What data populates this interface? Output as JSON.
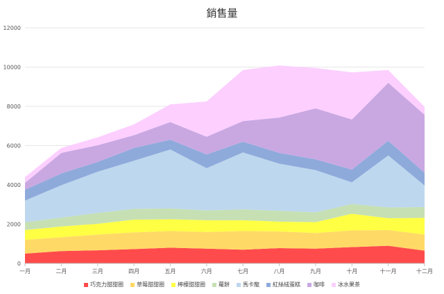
{
  "chart_data": {
    "type": "area",
    "stacked": true,
    "title": "銷售量",
    "categories": [
      "一月",
      "二月",
      "三月",
      "四月",
      "五月",
      "六月",
      "七月",
      "八月",
      "九月",
      "十月",
      "十一月",
      "十二月"
    ],
    "ylim": [
      0,
      12000
    ],
    "yticks": [
      0,
      2000,
      4000,
      6000,
      8000,
      10000,
      12000
    ],
    "grid": true,
    "legend_position": "bottom",
    "series": [
      {
        "name": "巧克力甜甜圈",
        "color": "#ff4b4b",
        "values": [
          500,
          630,
          670,
          730,
          800,
          750,
          700,
          780,
          750,
          830,
          900,
          650
        ]
      },
      {
        "name": "草莓甜甜圈",
        "color": "#ffd966",
        "values": [
          700,
          700,
          800,
          850,
          850,
          850,
          950,
          850,
          800,
          850,
          800,
          820
        ]
      },
      {
        "name": "檸檬甜甜圈",
        "color": "#ffff44",
        "values": [
          500,
          550,
          550,
          650,
          600,
          600,
          550,
          500,
          550,
          850,
          600,
          850
        ]
      },
      {
        "name": "蘿餅",
        "color": "#c6e0b4",
        "values": [
          400,
          450,
          550,
          550,
          550,
          500,
          550,
          550,
          500,
          500,
          550,
          550
        ]
      },
      {
        "name": "馬卡龍",
        "color": "#bdd7ee",
        "values": [
          1100,
          1650,
          2100,
          2450,
          3000,
          2150,
          2900,
          2400,
          2150,
          1100,
          2650,
          1100
        ]
      },
      {
        "name": "紅絲絨蛋糕",
        "color": "#8eaadb",
        "values": [
          550,
          600,
          500,
          650,
          500,
          700,
          550,
          550,
          550,
          650,
          750,
          650
        ]
      },
      {
        "name": "咖啡",
        "color": "#c9a8e2",
        "values": [
          350,
          1050,
          850,
          650,
          900,
          900,
          1050,
          1800,
          2600,
          2550,
          2950,
          2950
        ]
      },
      {
        "name": "冰水果茶",
        "color": "#fccfff",
        "values": [
          300,
          250,
          400,
          550,
          900,
          1800,
          2600,
          2650,
          2050,
          2400,
          650,
          400
        ]
      }
    ]
  }
}
